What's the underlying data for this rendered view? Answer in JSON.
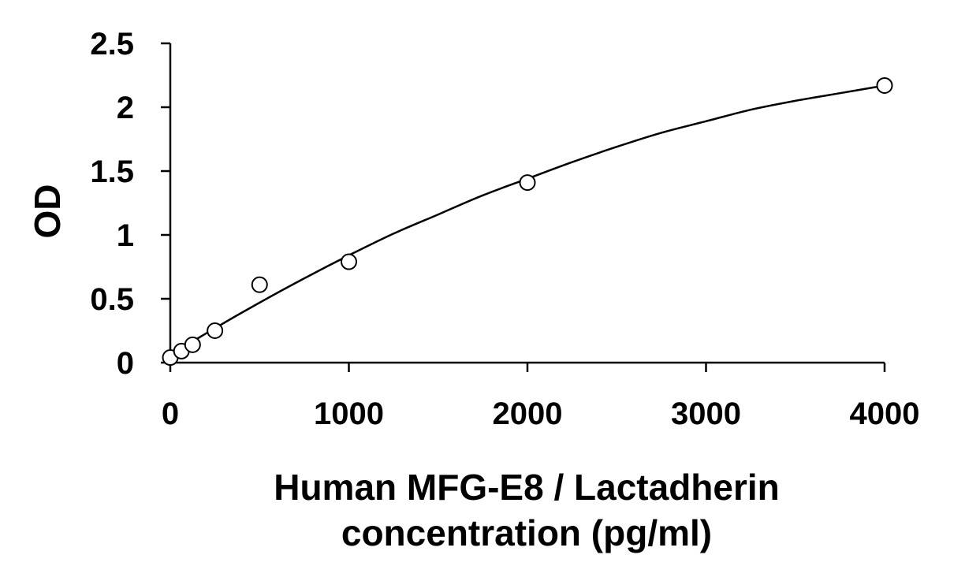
{
  "chart_data": {
    "type": "scatter",
    "title": "",
    "xlabel_lines": [
      "Human MFG-E8 / Lactadherin",
      "concentration (pg/ml)"
    ],
    "ylabel": "OD",
    "xlim": [
      0,
      4000
    ],
    "ylim": [
      0,
      2.5
    ],
    "x_ticks": [
      0,
      1000,
      2000,
      3000,
      4000
    ],
    "x_tick_labels": [
      "0",
      "1000",
      "2000",
      "3000",
      "4000"
    ],
    "y_ticks": [
      0,
      0.5,
      1,
      1.5,
      2,
      2.5
    ],
    "y_tick_labels": [
      "0",
      "0.5",
      "1",
      "1.5",
      "2",
      "2.5"
    ],
    "grid": false,
    "legend": "none",
    "series": [
      {
        "marker": "open-circle",
        "x": [
          0,
          62.5,
          125,
          250,
          500,
          1000,
          2000,
          4000
        ],
        "y": [
          0.04,
          0.09,
          0.14,
          0.25,
          0.61,
          0.79,
          1.41,
          2.17
        ]
      }
    ],
    "fit_curve": {
      "x": [
        0,
        250,
        500,
        750,
        1000,
        1250,
        1500,
        1750,
        2000,
        2250,
        2500,
        2750,
        3000,
        3250,
        3500,
        3750,
        4000
      ],
      "y": [
        0.06,
        0.27,
        0.47,
        0.66,
        0.84,
        1.01,
        1.16,
        1.31,
        1.44,
        1.57,
        1.69,
        1.8,
        1.89,
        1.98,
        2.05,
        2.11,
        2.17
      ]
    },
    "colors": {
      "axis": "#000000",
      "marker_stroke": "#000000",
      "marker_fill": "#ffffff",
      "curve": "#000000"
    }
  }
}
